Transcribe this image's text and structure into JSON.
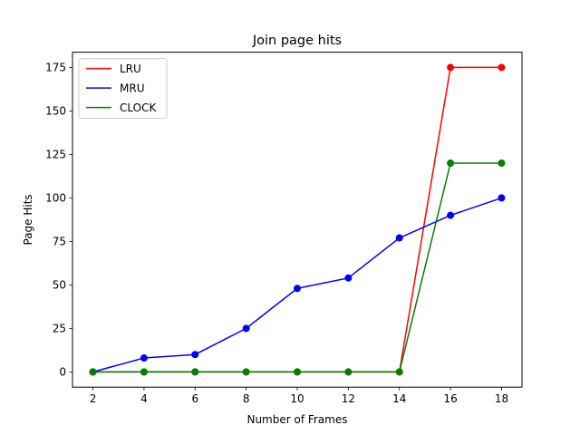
{
  "chart_data": {
    "type": "line",
    "title": "Join page hits",
    "xlabel": "Number of Frames",
    "ylabel": "Page Hits",
    "x": [
      2,
      4,
      6,
      8,
      10,
      12,
      14,
      16,
      18
    ],
    "xticks": [
      2,
      4,
      6,
      8,
      10,
      12,
      14,
      16,
      18
    ],
    "yticks": [
      0,
      25,
      50,
      75,
      100,
      125,
      150,
      175
    ],
    "xlim": [
      1.2,
      18.8
    ],
    "ylim": [
      -8.75,
      183.75
    ],
    "grid": false,
    "legend_position": "top-left",
    "series": [
      {
        "name": "LRU",
        "color": "#ff0000",
        "values": [
          0,
          0,
          0,
          0,
          0,
          0,
          0,
          175,
          175
        ]
      },
      {
        "name": "MRU",
        "color": "#0000ff",
        "values": [
          0,
          8,
          10,
          25,
          48,
          54,
          77,
          90,
          100
        ]
      },
      {
        "name": "CLOCK",
        "color": "#008000",
        "values": [
          0,
          0,
          0,
          0,
          0,
          0,
          0,
          120,
          120
        ]
      }
    ]
  }
}
